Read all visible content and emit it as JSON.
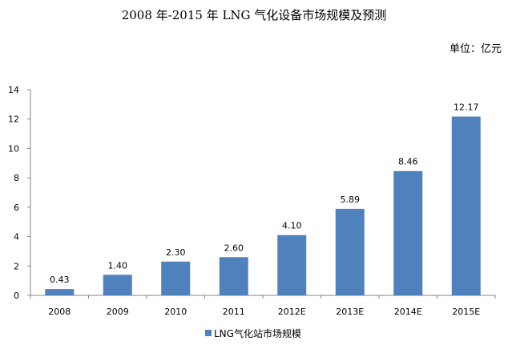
{
  "chart_data": {
    "type": "bar",
    "title": "2008 年-2015 年 LNG 气化设备市场规模及预测",
    "unit_label": "单位：亿元",
    "categories": [
      "2008",
      "2009",
      "2010",
      "2011",
      "2012E",
      "2013E",
      "2014E",
      "2015E"
    ],
    "series": [
      {
        "name": "LNG气化站市场规模",
        "values": [
          0.43,
          1.4,
          2.3,
          2.6,
          4.1,
          5.89,
          8.46,
          12.17
        ],
        "labels": [
          "0.43",
          "1.40",
          "2.30",
          "2.60",
          "4.10",
          "5.89",
          "8.46",
          "12.17"
        ],
        "color": "#4f81bd"
      }
    ],
    "ylim": [
      0,
      14
    ],
    "yticks": [
      "0",
      "2",
      "4",
      "6",
      "8",
      "10",
      "12",
      "14"
    ],
    "grid": false,
    "legend_position": "bottom"
  }
}
